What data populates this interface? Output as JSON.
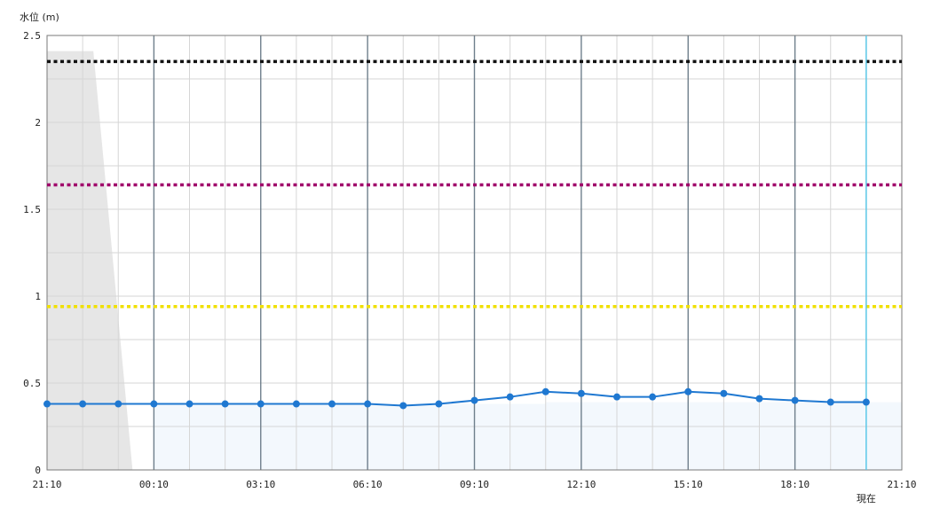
{
  "chart_data": {
    "type": "line",
    "ylabel": "水位 (m)",
    "ylim": [
      0,
      2.5
    ],
    "y_ticks": [
      "0",
      "0.5",
      "1",
      "1.5",
      "2",
      "2.5"
    ],
    "x_tick_labels": [
      "21:10",
      "00:10",
      "03:10",
      "06:10",
      "09:10",
      "12:10",
      "15:10",
      "18:10",
      "21:10"
    ],
    "now_label": "現在",
    "grid": true,
    "series": [
      {
        "values": [
          0.38,
          0.38,
          0.38,
          0.38,
          0.38,
          0.38,
          0.38,
          0.38,
          0.38,
          0.38,
          0.37,
          0.38,
          0.4,
          0.42,
          0.45,
          0.44,
          0.42,
          0.42,
          0.45,
          0.44,
          0.41,
          0.4,
          0.39,
          0.39
        ],
        "color": "#1f78d1"
      }
    ],
    "reference_lines": [
      {
        "value": 2.35,
        "color": "#111111"
      },
      {
        "value": 1.64,
        "color": "#a0006a"
      },
      {
        "value": 0.94,
        "color": "#f0e000"
      }
    ],
    "colors": {
      "now_line": "#5bc8e8",
      "past_area": "#f3f8fd",
      "grey_area": "#e6e6e6"
    }
  }
}
